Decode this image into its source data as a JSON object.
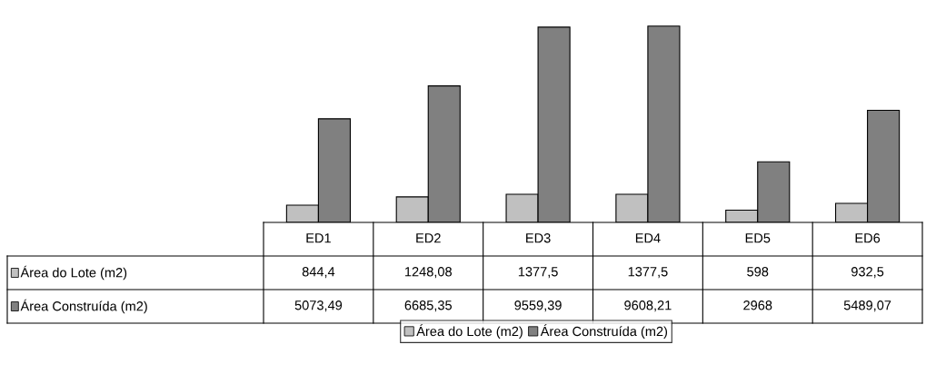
{
  "chart_data": {
    "type": "bar",
    "categories": [
      "ED1",
      "ED2",
      "ED3",
      "ED4",
      "ED5",
      "ED6"
    ],
    "series": [
      {
        "name": "Área do Lote (m2)",
        "color": "#c0c0c0",
        "values": [
          844.4,
          1248.08,
          1377.5,
          1377.5,
          598,
          932.5
        ],
        "value_labels": [
          "844,4",
          "1248,08",
          "1377,5",
          "1377,5",
          "598",
          "932,5"
        ]
      },
      {
        "name": "Área Construída (m2)",
        "color": "#808080",
        "values": [
          5073.49,
          6685.35,
          9559.39,
          9608.21,
          2968,
          5489.07
        ],
        "value_labels": [
          "5073,49",
          "6685,35",
          "9559,39",
          "9608,21",
          "2968",
          "5489,07"
        ]
      }
    ],
    "legend": "bottom"
  }
}
